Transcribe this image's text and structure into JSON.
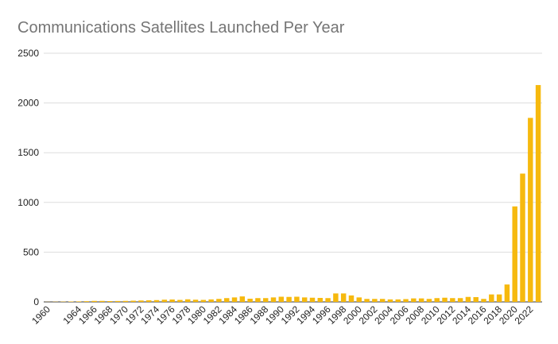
{
  "chart_data": {
    "type": "bar",
    "title": "Communications Satellites Launched Per Year",
    "categories": [
      "1960",
      null,
      null,
      null,
      "1964",
      null,
      "1966",
      null,
      "1968",
      null,
      "1970",
      null,
      "1972",
      null,
      "1974",
      null,
      "1976",
      null,
      "1978",
      null,
      "1980",
      null,
      "1982",
      null,
      "1984",
      null,
      "1986",
      null,
      "1988",
      null,
      "1990",
      null,
      "1992",
      null,
      "1994",
      null,
      "1996",
      null,
      "1998",
      null,
      "2000",
      null,
      "2002",
      null,
      "2004",
      null,
      "2006",
      null,
      "2008",
      null,
      "2010",
      null,
      "2012",
      null,
      "2014",
      null,
      "2016",
      null,
      "2018",
      null,
      "2020",
      null,
      "2022",
      null
    ],
    "values": [
      1,
      2,
      3,
      4,
      5,
      7,
      10,
      10,
      8,
      9,
      10,
      12,
      14,
      16,
      18,
      22,
      24,
      20,
      26,
      22,
      20,
      25,
      30,
      38,
      45,
      55,
      32,
      38,
      38,
      45,
      52,
      50,
      52,
      45,
      42,
      40,
      38,
      85,
      85,
      65,
      45,
      30,
      30,
      30,
      25,
      25,
      28,
      35,
      35,
      30,
      38,
      42,
      38,
      38,
      50,
      48,
      30,
      75,
      75,
      175,
      960,
      1290,
      1850,
      2180
    ],
    "color": "#f6b90e",
    "ylim": [
      0,
      2500
    ],
    "yticks": [
      0,
      500,
      1000,
      1500,
      2000,
      2500
    ],
    "grid": true
  }
}
